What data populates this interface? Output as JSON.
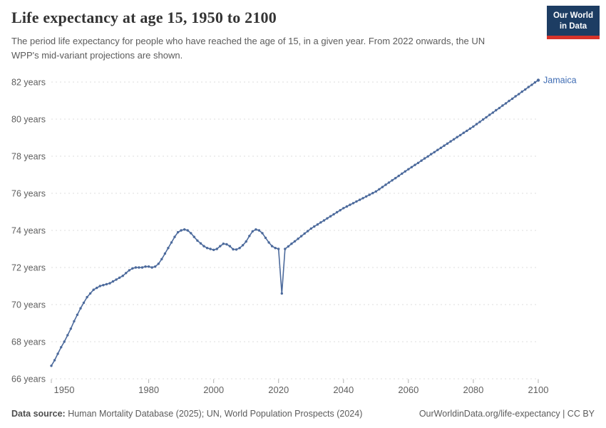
{
  "header": {
    "title": "Life expectancy at age 15, 1950 to 2100",
    "subtitle": "The period life expectancy for people who have reached the age of 15, in a given year. From 2022 onwards, the UN WPP's mid-variant projections are shown."
  },
  "logo": {
    "line1": "Our World",
    "line2": "in Data",
    "bg_color": "#1d3d63",
    "bar_color": "#d7332a"
  },
  "chart_data": {
    "type": "line",
    "title": "Life expectancy at age 15, 1950 to 2100",
    "entity_label": "Jamaica",
    "grid": true,
    "xlim": [
      1950,
      2100
    ],
    "ylim": [
      66,
      82
    ],
    "x_ticks": [
      1950,
      1980,
      2000,
      2020,
      2040,
      2060,
      2080,
      2100
    ],
    "y_ticks": [
      66,
      68,
      70,
      72,
      74,
      76,
      78,
      80,
      82
    ],
    "y_tick_suffix": " years",
    "line_color": "#4c6a9c",
    "label_color": "#3d6bb3",
    "grid_color": "#dcdcdc",
    "tick_text_color": "#5f5f5f",
    "series": [
      {
        "name": "Jamaica",
        "start_year": 1950,
        "values": [
          66.7,
          67.0,
          67.35,
          67.7,
          68.0,
          68.35,
          68.7,
          69.1,
          69.45,
          69.8,
          70.1,
          70.4,
          70.6,
          70.8,
          70.9,
          71.0,
          71.05,
          71.1,
          71.15,
          71.25,
          71.35,
          71.45,
          71.55,
          71.7,
          71.85,
          71.95,
          72.0,
          72.0,
          72.0,
          72.05,
          72.05,
          72.0,
          72.05,
          72.2,
          72.45,
          72.75,
          73.05,
          73.35,
          73.65,
          73.9,
          74.0,
          74.05,
          74.0,
          73.85,
          73.65,
          73.45,
          73.3,
          73.15,
          73.05,
          73.0,
          72.95,
          73.0,
          73.15,
          73.28,
          73.25,
          73.15,
          72.98,
          72.97,
          73.05,
          73.2,
          73.4,
          73.7,
          73.95,
          74.05,
          74.0,
          73.85,
          73.6,
          73.35,
          73.15,
          73.05,
          73.0,
          70.6,
          73.0,
          73.14,
          73.28,
          73.41,
          73.55,
          73.69,
          73.83,
          73.96,
          74.1,
          74.21,
          74.32,
          74.43,
          74.54,
          74.65,
          74.76,
          74.87,
          74.98,
          75.09,
          75.2,
          75.29,
          75.38,
          75.47,
          75.56,
          75.65,
          75.74,
          75.83,
          75.92,
          76.01,
          76.1,
          76.22,
          76.34,
          76.46,
          76.58,
          76.7,
          76.82,
          76.94,
          77.06,
          77.18,
          77.3,
          77.41,
          77.53,
          77.64,
          77.76,
          77.88,
          77.99,
          78.11,
          78.22,
          78.34,
          78.45,
          78.57,
          78.68,
          78.8,
          78.91,
          79.03,
          79.14,
          79.26,
          79.37,
          79.49,
          79.6,
          79.73,
          79.85,
          79.98,
          80.1,
          80.23,
          80.35,
          80.48,
          80.6,
          80.73,
          80.85,
          80.98,
          81.1,
          81.23,
          81.35,
          81.48,
          81.6,
          81.73,
          81.85,
          81.98,
          82.1
        ]
      }
    ]
  },
  "footer": {
    "source_label": "Data source:",
    "source_text": " Human Mortality Database (2025); UN, World Population Prospects (2024)",
    "right_text": "OurWorldinData.org/life-expectancy | CC BY"
  }
}
